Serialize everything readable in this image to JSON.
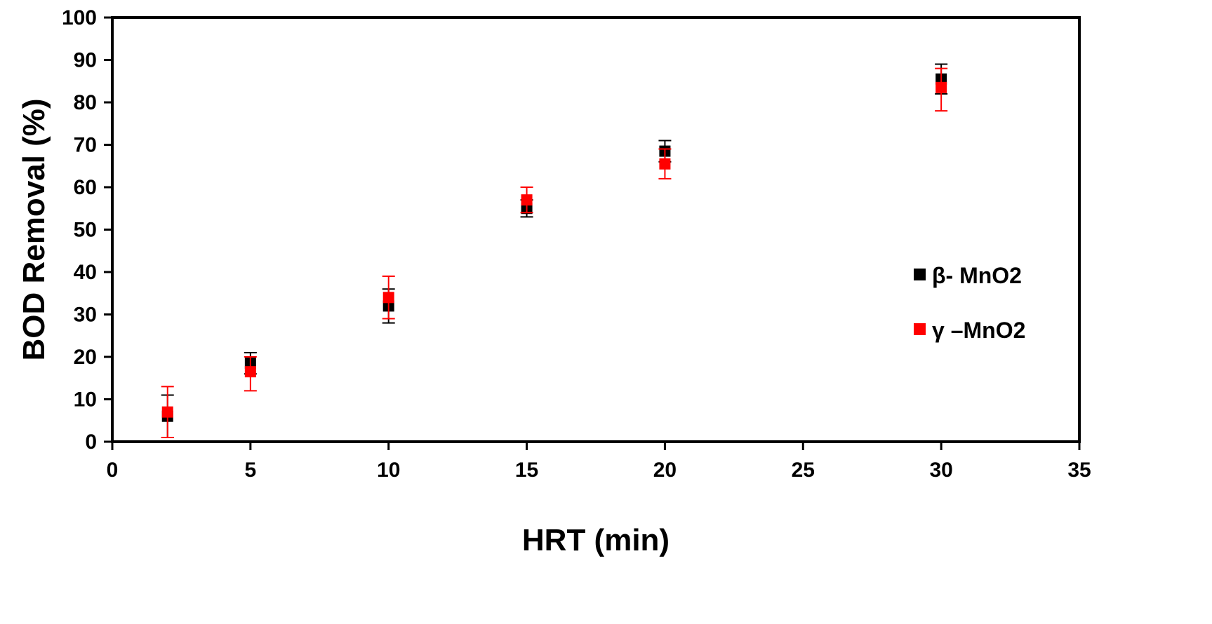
{
  "chart_data": {
    "type": "scatter",
    "xlabel": "HRT (min)",
    "ylabel": "BOD Removal (%)",
    "xlim": [
      0,
      35
    ],
    "ylim": [
      0,
      100
    ],
    "x_ticks": [
      "0",
      "5",
      "10",
      "15",
      "20",
      "25",
      "30",
      "35"
    ],
    "y_ticks": [
      "0",
      "10",
      "20",
      "30",
      "40",
      "50",
      "60",
      "70",
      "80",
      "90",
      "100"
    ],
    "grid": false,
    "legend_position": "right",
    "series": [
      {
        "name": "β- MnO2",
        "color": "#000000",
        "points": [
          {
            "x": 2,
            "y": 6,
            "err_low": 1,
            "err_high": 11
          },
          {
            "x": 5,
            "y": 18.5,
            "err_low": 16,
            "err_high": 21
          },
          {
            "x": 10,
            "y": 32,
            "err_low": 28,
            "err_high": 36
          },
          {
            "x": 15,
            "y": 55,
            "err_low": 53,
            "err_high": 57
          },
          {
            "x": 20,
            "y": 68.5,
            "err_low": 66,
            "err_high": 71
          },
          {
            "x": 30,
            "y": 85.5,
            "err_low": 82,
            "err_high": 89
          }
        ]
      },
      {
        "name": "γ –MnO2",
        "color": "#ff0000",
        "points": [
          {
            "x": 2,
            "y": 7,
            "err_low": 1,
            "err_high": 13
          },
          {
            "x": 5,
            "y": 16.5,
            "err_low": 12,
            "err_high": 20
          },
          {
            "x": 10,
            "y": 34,
            "err_low": 29,
            "err_high": 39
          },
          {
            "x": 15,
            "y": 57,
            "err_low": 54,
            "err_high": 60
          },
          {
            "x": 20,
            "y": 65.5,
            "err_low": 62,
            "err_high": 69
          },
          {
            "x": 30,
            "y": 83.5,
            "err_low": 78,
            "err_high": 88
          }
        ]
      }
    ]
  }
}
